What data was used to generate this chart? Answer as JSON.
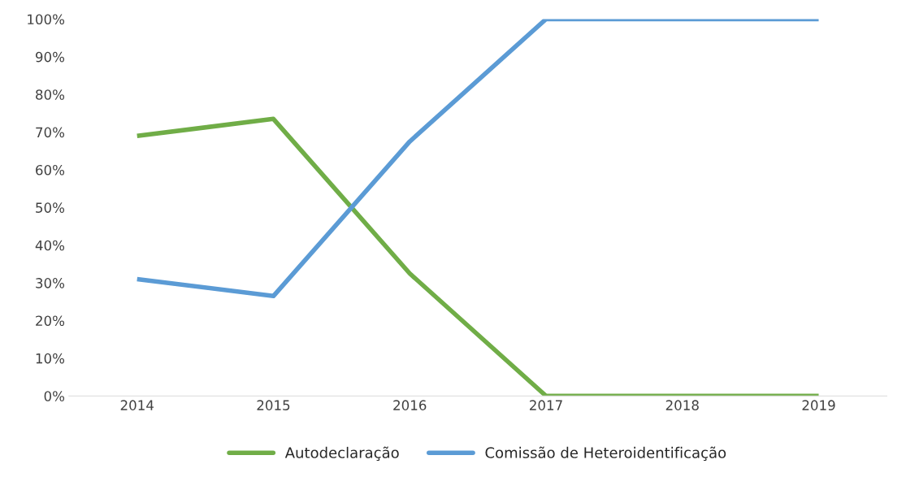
{
  "chart_data": {
    "type": "line",
    "categories": [
      "2014",
      "2015",
      "2016",
      "2017",
      "2018",
      "2019"
    ],
    "series": [
      {
        "name": "Autodeclaração",
        "color": "#70ad47",
        "values": [
          69,
          73.5,
          32.5,
          0,
          0,
          0
        ]
      },
      {
        "name": "Comissão de Heteroidentificação",
        "color": "#5b9bd5",
        "values": [
          31,
          26.5,
          67.5,
          100,
          100,
          100
        ]
      }
    ],
    "ylim": [
      0,
      100
    ],
    "yticks": [
      {
        "value": 0,
        "label": "0%"
      },
      {
        "value": 10,
        "label": "10%"
      },
      {
        "value": 20,
        "label": "20%"
      },
      {
        "value": 30,
        "label": "30%"
      },
      {
        "value": 40,
        "label": "40%"
      },
      {
        "value": 50,
        "label": "50%"
      },
      {
        "value": 60,
        "label": "60%"
      },
      {
        "value": 70,
        "label": "70%"
      },
      {
        "value": 80,
        "label": "80%"
      },
      {
        "value": 90,
        "label": "90%"
      },
      {
        "value": 100,
        "label": "100%"
      }
    ],
    "grid": false,
    "legend": "bottom",
    "marker": "none",
    "line_style": "solid"
  }
}
